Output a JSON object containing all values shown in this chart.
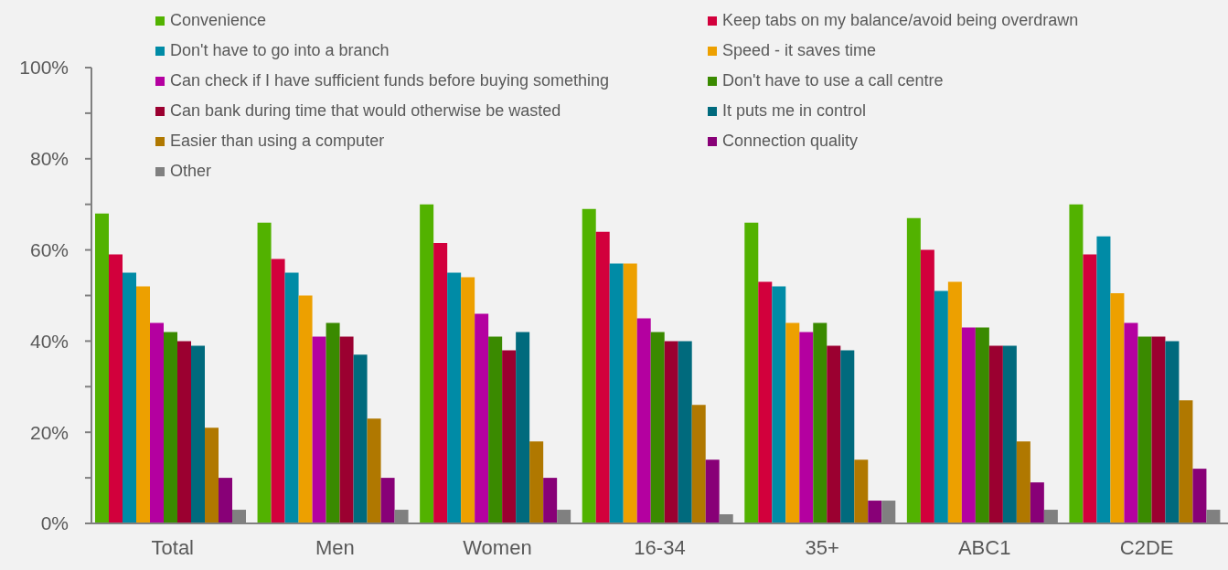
{
  "chart_data": {
    "type": "bar",
    "categories": [
      "Total",
      "Men",
      "Women",
      "16-34",
      "35+",
      "ABC1",
      "C2DE"
    ],
    "series": [
      {
        "name": "Convenience",
        "color": "#52b200",
        "values": [
          68,
          66,
          70,
          69,
          66,
          67,
          70
        ]
      },
      {
        "name": "Keep tabs on my balance/avoid being overdrawn",
        "color": "#d2003c",
        "values": [
          59,
          58,
          61.5,
          64,
          53,
          60,
          59
        ]
      },
      {
        "name": "Don't have to go into a branch",
        "color": "#008ba6",
        "values": [
          55,
          55,
          55,
          57,
          52,
          51,
          63
        ]
      },
      {
        "name": "Speed - it saves time",
        "color": "#eda000",
        "values": [
          52,
          50,
          54,
          57,
          44,
          53,
          50.5
        ]
      },
      {
        "name": "Can check if I have sufficient funds before buying something",
        "color": "#b400a0",
        "values": [
          44,
          41,
          46,
          45,
          42,
          43,
          44
        ]
      },
      {
        "name": "Don't have to use a call centre",
        "color": "#3a8a00",
        "values": [
          42,
          44,
          41,
          42,
          44,
          43,
          41
        ]
      },
      {
        "name": "Can bank during time that would otherwise be wasted",
        "color": "#9b0030",
        "values": [
          40,
          41,
          38,
          40,
          39,
          39,
          41
        ]
      },
      {
        "name": "It puts me in control",
        "color": "#006a7d",
        "values": [
          39,
          37,
          42,
          40,
          38,
          39,
          40
        ]
      },
      {
        "name": "Easier than using a computer",
        "color": "#b07800",
        "values": [
          21,
          23,
          18,
          26,
          14,
          18,
          27
        ]
      },
      {
        "name": "Connection quality",
        "color": "#880077",
        "values": [
          10,
          10,
          10,
          14,
          5,
          9,
          12
        ]
      },
      {
        "name": "Other",
        "color": "#808080",
        "values": [
          3,
          3,
          3,
          2,
          5,
          3,
          3
        ]
      }
    ],
    "ylim": [
      0,
      100
    ],
    "yticks": [
      {
        "value": 0,
        "label": "0%"
      },
      {
        "value": 10,
        "label": null
      },
      {
        "value": 20,
        "label": "20%"
      },
      {
        "value": 30,
        "label": null
      },
      {
        "value": 40,
        "label": "40%"
      },
      {
        "value": 50,
        "label": null
      },
      {
        "value": 60,
        "label": "60%"
      },
      {
        "value": 70,
        "label": null
      },
      {
        "value": 80,
        "label": "80%"
      },
      {
        "value": 90,
        "label": null
      },
      {
        "value": 100,
        "label": "100%"
      }
    ],
    "legend": "top"
  }
}
